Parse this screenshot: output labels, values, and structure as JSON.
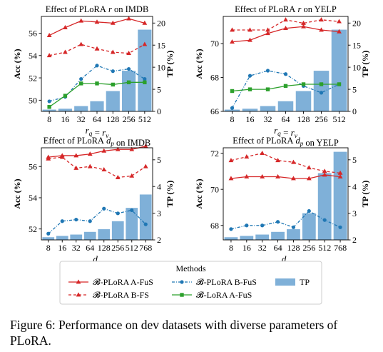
{
  "caption": "Figure 6: Performance on dev datasets with diverse parameters of PLoRA.",
  "colors": {
    "afus": "#d62728",
    "bfs": "#d62728",
    "bfus": "#1f77b4",
    "lora": "#2ca02c",
    "tp": "#7fb0d8"
  },
  "legend": {
    "title": "Methods",
    "entries": [
      {
        "key": "afus",
        "label": "𝓑-PLoRA A-FuS"
      },
      {
        "key": "bfs",
        "label": "𝓑-PLoRA B-FS"
      },
      {
        "key": "bfus",
        "label": "𝓑-PLoRA B-FuS"
      },
      {
        "key": "lora",
        "label": "𝓑-LoRA A-FuS"
      },
      {
        "key": "tp",
        "label": "TP"
      }
    ]
  },
  "chart_data": [
    {
      "type": "bar+line",
      "title": "Effect of PLoRA r on IMDB",
      "xlabel": "r_q = r_v",
      "ylabel_left": "Acc (%)",
      "ylabel_right": "TP (%)",
      "categories": [
        "8",
        "16",
        "32",
        "64",
        "128",
        "256",
        "512"
      ],
      "ylim_left": [
        49,
        57.5
      ],
      "yticks_left": [
        50,
        52,
        54,
        56
      ],
      "ylim_right": [
        0,
        21.5
      ],
      "yticks_right": [
        0,
        5,
        10,
        15,
        20
      ],
      "bars": [
        0.4,
        0.6,
        1.2,
        2.3,
        4.6,
        9.2,
        18.5
      ],
      "series": [
        {
          "key": "afus",
          "name": "𝓑-PLoRA A-FuS",
          "values": [
            55.8,
            56.5,
            57.1,
            57.0,
            56.9,
            57.3,
            56.9
          ]
        },
        {
          "key": "bfs",
          "name": "𝓑-PLoRA B-FS",
          "values": [
            54.0,
            54.3,
            55.0,
            54.6,
            54.3,
            54.2,
            55.0
          ]
        },
        {
          "key": "bfus",
          "name": "𝓑-PLoRA B-FuS",
          "values": [
            49.9,
            50.3,
            51.9,
            53.1,
            52.6,
            52.8,
            51.9
          ]
        },
        {
          "key": "lora",
          "name": "𝓑-LoRA A-FuS",
          "values": [
            49.4,
            50.4,
            51.5,
            51.5,
            51.4,
            51.6,
            51.6
          ]
        }
      ]
    },
    {
      "type": "bar+line",
      "title": "Effect of PLoRA r on YELP",
      "xlabel": "r_q = r_v",
      "ylabel_left": "Acc (%)",
      "ylabel_right": "TP (%)",
      "categories": [
        "8",
        "16",
        "32",
        "64",
        "128",
        "256",
        "512"
      ],
      "ylim_left": [
        66,
        71.6
      ],
      "yticks_left": [
        66,
        68,
        70
      ],
      "ylim_right": [
        0,
        21.5
      ],
      "yticks_right": [
        0,
        5,
        10,
        15,
        20
      ],
      "bars": [
        0.4,
        0.6,
        1.2,
        2.3,
        4.6,
        9.2,
        18.5
      ],
      "series": [
        {
          "key": "afus",
          "name": "𝓑-PLoRA A-FuS",
          "values": [
            70.1,
            70.2,
            70.6,
            70.9,
            71.0,
            70.8,
            70.7
          ]
        },
        {
          "key": "bfs",
          "name": "𝓑-PLoRA B-FS",
          "values": [
            70.8,
            70.8,
            70.8,
            71.4,
            71.2,
            71.4,
            71.3
          ]
        },
        {
          "key": "bfus",
          "name": "𝓑-PLoRA B-FuS",
          "values": [
            66.2,
            68.1,
            68.4,
            68.2,
            67.5,
            67.1,
            67.6
          ]
        },
        {
          "key": "lora",
          "name": "𝓑-LoRA A-FuS",
          "values": [
            67.2,
            67.3,
            67.3,
            67.5,
            67.6,
            67.6,
            67.6
          ]
        }
      ]
    },
    {
      "type": "bar+line",
      "title": "Effect of PLoRA d_p on IMDB",
      "xlabel": "d_p",
      "ylabel_left": "Acc (%)",
      "ylabel_right": "TP (%)",
      "categories": [
        "8",
        "16",
        "32",
        "64",
        "128",
        "256",
        "512",
        "768"
      ],
      "ylim_left": [
        51.3,
        57.2
      ],
      "yticks_left": [
        52,
        54,
        56
      ],
      "ylim_right": [
        2,
        5.45
      ],
      "yticks_right": [
        2,
        3,
        4,
        5
      ],
      "bars": [
        2.1,
        2.15,
        2.2,
        2.3,
        2.4,
        2.7,
        3.2,
        3.7
      ],
      "series": [
        {
          "key": "afus",
          "name": "𝓑-PLoRA A-FuS",
          "values": [
            56.6,
            56.7,
            56.7,
            56.8,
            57.0,
            57.1,
            57.1,
            57.3
          ]
        },
        {
          "key": "bfs",
          "name": "𝓑-PLoRA B-FS",
          "values": [
            56.5,
            56.6,
            55.9,
            56.0,
            55.8,
            55.3,
            55.4,
            56.0
          ]
        },
        {
          "key": "bfus",
          "name": "𝓑-PLoRA B-FuS",
          "values": [
            51.7,
            52.5,
            52.6,
            52.5,
            53.3,
            53.0,
            53.2,
            52.3
          ]
        }
      ]
    },
    {
      "type": "bar+line",
      "title": "Effect of PLoRA d_p on YELP",
      "xlabel": "d_p",
      "ylabel_left": "Acc (%)",
      "ylabel_right": "TP (%)",
      "categories": [
        "8",
        "16",
        "32",
        "64",
        "128",
        "256",
        "512",
        "768"
      ],
      "ylim_left": [
        67.2,
        72.3
      ],
      "yticks_left": [
        68,
        70,
        72
      ],
      "ylim_right": [
        2,
        5.45
      ],
      "yticks_right": [
        2,
        3,
        4,
        5
      ],
      "bars": [
        2.1,
        2.15,
        2.2,
        2.3,
        2.4,
        3.0,
        4.5,
        5.3
      ],
      "series": [
        {
          "key": "afus",
          "name": "𝓑-PLoRA A-FuS",
          "values": [
            70.6,
            70.7,
            70.7,
            70.7,
            70.6,
            70.6,
            70.8,
            70.7
          ]
        },
        {
          "key": "bfs",
          "name": "𝓑-PLoRA B-FS",
          "values": [
            71.6,
            71.8,
            72.0,
            71.6,
            71.5,
            71.2,
            71.0,
            70.9
          ]
        },
        {
          "key": "bfus",
          "name": "𝓑-PLoRA B-FuS",
          "values": [
            67.8,
            68.0,
            68.0,
            68.2,
            67.9,
            68.8,
            68.3,
            67.9
          ]
        }
      ]
    }
  ]
}
